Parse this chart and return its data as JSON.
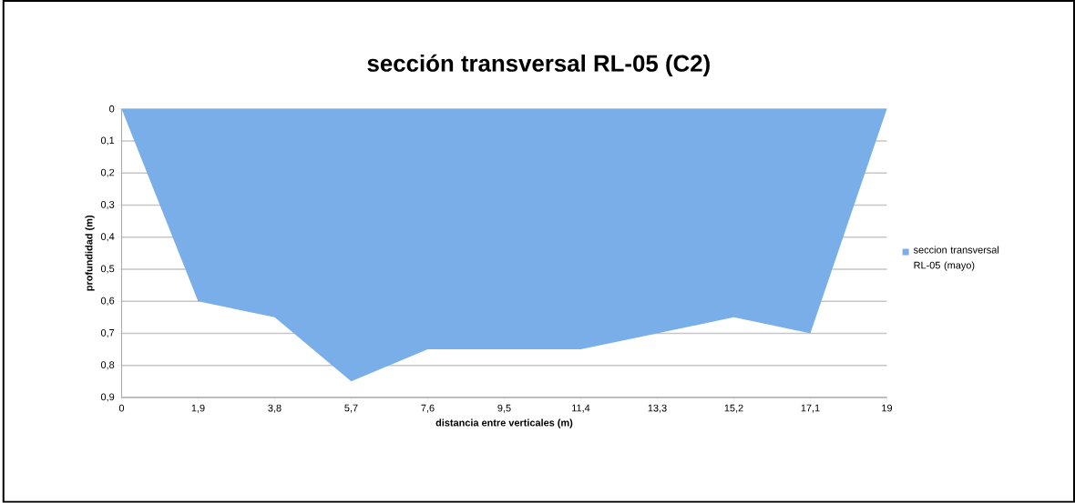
{
  "chart_data": {
    "type": "area",
    "title": "sección transversal RL-05 (C2)",
    "xlabel": "distancia entre verticales (m)",
    "ylabel": "profundidad (m)",
    "categories": [
      "0",
      "1,9",
      "3,8",
      "5,7",
      "7,6",
      "9,5",
      "11,4",
      "13,3",
      "15,2",
      "17,1",
      "19"
    ],
    "series": [
      {
        "name": "seccion transversal RL-05 (mayo)",
        "color": "#7aaee8",
        "values": [
          0,
          0.6,
          0.65,
          0.85,
          0.75,
          0.75,
          0.75,
          0.7,
          0.65,
          0.7,
          0
        ]
      }
    ],
    "ylim": [
      0.9,
      0
    ],
    "yticks": [
      0,
      {
        "value": 0.1,
        "label": "0,1"
      },
      {
        "value": 0.2,
        "label": "0,2"
      },
      {
        "value": 0.3,
        "label": "0,3"
      },
      {
        "value": 0.4,
        "label": "0,4"
      },
      {
        "value": 0.5,
        "label": "0,5"
      },
      {
        "value": 0.6,
        "label": "0,6"
      },
      {
        "value": 0.7,
        "label": "0,7"
      },
      {
        "value": 0.8,
        "label": "0,8"
      },
      {
        "value": 0.9,
        "label": "0,9"
      }
    ],
    "grid": "y",
    "legend": "right"
  }
}
